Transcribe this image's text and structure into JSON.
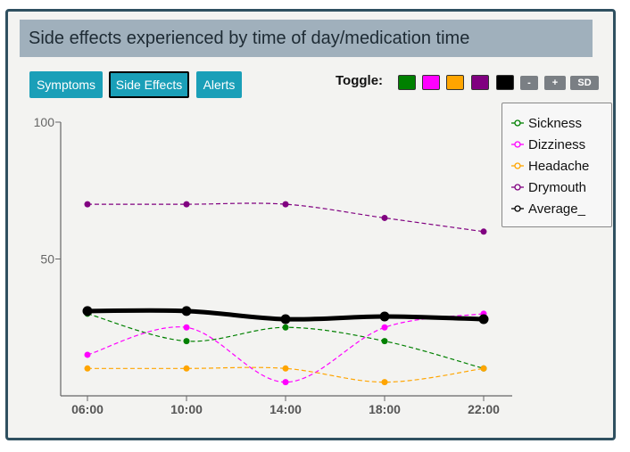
{
  "title": "Side effects experienced by time of day/medication time",
  "tabs": [
    {
      "label": "Symptoms",
      "active": false
    },
    {
      "label": "Side Effects",
      "active": true
    },
    {
      "label": "Alerts",
      "active": false
    }
  ],
  "toggle": {
    "label": "Toggle:",
    "swatches": [
      "#008000",
      "#ff00ff",
      "#ffa500",
      "#800080",
      "#000000"
    ],
    "minus_label": "-",
    "plus_label": "+",
    "sd_label": "SD"
  },
  "chart_data": {
    "type": "line",
    "title": "Side effects experienced by time of day/medication time",
    "xlabel": "",
    "ylabel": "",
    "categories": [
      "06:00",
      "10:00",
      "14:00",
      "18:00",
      "22:00"
    ],
    "ylim": [
      0,
      100
    ],
    "yticks": [
      50,
      100
    ],
    "legend_position": "top-right",
    "grid": false,
    "series": [
      {
        "name": "Sickness",
        "color": "#008000",
        "values": [
          30,
          20,
          25,
          20,
          10
        ]
      },
      {
        "name": "Dizziness",
        "color": "#ff00ff",
        "values": [
          15,
          25,
          5,
          25,
          30
        ]
      },
      {
        "name": "Headache",
        "color": "#ffa500",
        "values": [
          10,
          10,
          10,
          5,
          10
        ]
      },
      {
        "name": "Drymouth",
        "color": "#800080",
        "values": [
          70,
          70,
          70,
          65,
          60
        ]
      },
      {
        "name": "Average_",
        "color": "#000000",
        "values": [
          31,
          31,
          28,
          29,
          28
        ]
      }
    ]
  }
}
